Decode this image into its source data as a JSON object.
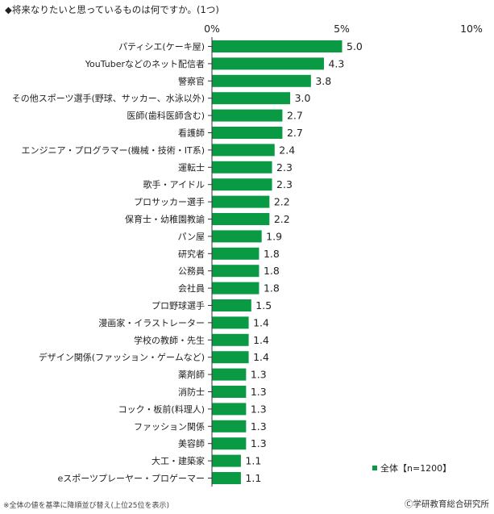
{
  "chart_data": {
    "type": "bar",
    "orientation": "horizontal",
    "title": "◆将来なりたいと思っているものは何ですか。(1つ)",
    "categories": [
      "パティシエ(ケーキ屋)",
      "YouTuberなどのネット配信者",
      "警察官",
      "その他スポーツ選手(野球、サッカー、水泳以外)",
      "医師(歯科医師含む)",
      "看護師",
      "エンジニア・プログラマー(機械・技術・IT系)",
      "運転士",
      "歌手・アイドル",
      "プロサッカー選手",
      "保育士・幼稚園教諭",
      "パン屋",
      "研究者",
      "公務員",
      "会社員",
      "プロ野球選手",
      "漫画家・イラストレーター",
      "学校の教師・先生",
      "デザイン関係(ファッション・ゲームなど)",
      "薬剤師",
      "消防士",
      "コック・板前(料理人)",
      "ファッション関係",
      "美容師",
      "大工・建築家",
      "eスポーツプレーヤー・プロゲーマー"
    ],
    "series": [
      {
        "name": "全体【n=1200】",
        "values": [
          5.0,
          4.3,
          3.8,
          3.0,
          2.7,
          2.7,
          2.4,
          2.3,
          2.3,
          2.2,
          2.2,
          1.9,
          1.8,
          1.8,
          1.8,
          1.5,
          1.4,
          1.4,
          1.4,
          1.3,
          1.3,
          1.3,
          1.3,
          1.3,
          1.1,
          1.1
        ],
        "value_labels": [
          "5.0",
          "4.3",
          "3.8",
          "3.0",
          "2.7",
          "2.7",
          "2.4",
          "2.3",
          "2.3",
          "2.2",
          "2.2",
          "1.9",
          "1.8",
          "1.8",
          "1.8",
          "1.5",
          "1.4",
          "1.4",
          "1.4",
          "1.3",
          "1.3",
          "1.3",
          "1.3",
          "1.3",
          "1.1",
          "1.1"
        ]
      }
    ],
    "xlim": [
      0,
      10
    ],
    "xticks": [
      "0%",
      "5%",
      "10%"
    ],
    "grid": false,
    "legend_position": "bottom-right",
    "bar_color": "#0b9a44"
  },
  "footnote": "※全体の値を基準に降順並び替え(上位25位を表示)",
  "credit": "Ⓒ学研教育総合研究所"
}
